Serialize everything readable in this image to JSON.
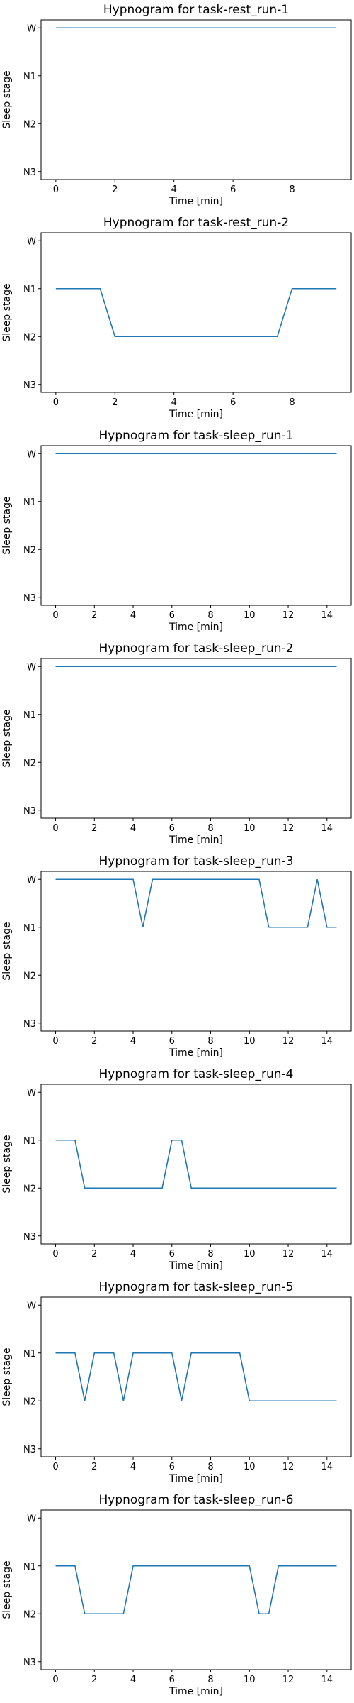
{
  "theme": {
    "line_color": "#1f77b4",
    "axis_color": "#000000",
    "background": "#ffffff"
  },
  "chart_data": [
    {
      "type": "line",
      "title": "Hypnogram for task-rest_run-1",
      "xlabel": "Time [min]",
      "ylabel": "Sleep stage",
      "y_categories": [
        "W",
        "N1",
        "N2",
        "N3"
      ],
      "xlim": [
        -0.5,
        10.0
      ],
      "xticks": [
        0,
        2,
        4,
        6,
        8
      ],
      "grid": false,
      "x": [
        0,
        9.5
      ],
      "y": [
        "W",
        "W"
      ]
    },
    {
      "type": "line",
      "title": "Hypnogram for task-rest_run-2",
      "xlabel": "Time [min]",
      "ylabel": "Sleep stage",
      "y_categories": [
        "W",
        "N1",
        "N2",
        "N3"
      ],
      "xlim": [
        -0.5,
        10.0
      ],
      "xticks": [
        0,
        2,
        4,
        6,
        8
      ],
      "grid": false,
      "x": [
        0,
        1.5,
        2.0,
        7.5,
        8.0,
        9.5
      ],
      "y": [
        "N1",
        "N1",
        "N2",
        "N2",
        "N1",
        "N1"
      ]
    },
    {
      "type": "line",
      "title": "Hypnogram for task-sleep_run-1",
      "xlabel": "Time [min]",
      "ylabel": "Sleep stage",
      "y_categories": [
        "W",
        "N1",
        "N2",
        "N3"
      ],
      "xlim": [
        -0.75,
        15.25
      ],
      "xticks": [
        0,
        2,
        4,
        6,
        8,
        10,
        12,
        14
      ],
      "grid": false,
      "x": [
        0,
        14.5
      ],
      "y": [
        "W",
        "W"
      ]
    },
    {
      "type": "line",
      "title": "Hypnogram for task-sleep_run-2",
      "xlabel": "Time [min]",
      "ylabel": "Sleep stage",
      "y_categories": [
        "W",
        "N1",
        "N2",
        "N3"
      ],
      "xlim": [
        -0.75,
        15.25
      ],
      "xticks": [
        0,
        2,
        4,
        6,
        8,
        10,
        12,
        14
      ],
      "grid": false,
      "x": [
        0,
        14.5
      ],
      "y": [
        "W",
        "W"
      ]
    },
    {
      "type": "line",
      "title": "Hypnogram for task-sleep_run-3",
      "xlabel": "Time [min]",
      "ylabel": "Sleep stage",
      "y_categories": [
        "W",
        "N1",
        "N2",
        "N3"
      ],
      "xlim": [
        -0.75,
        15.25
      ],
      "xticks": [
        0,
        2,
        4,
        6,
        8,
        10,
        12,
        14
      ],
      "grid": false,
      "x": [
        0,
        4.0,
        4.5,
        5.0,
        10.5,
        11.0,
        13.0,
        13.5,
        14.0,
        14.5
      ],
      "y": [
        "W",
        "W",
        "N1",
        "W",
        "W",
        "N1",
        "N1",
        "W",
        "N1",
        "N1"
      ]
    },
    {
      "type": "line",
      "title": "Hypnogram for task-sleep_run-4",
      "xlabel": "Time [min]",
      "ylabel": "Sleep stage",
      "y_categories": [
        "W",
        "N1",
        "N2",
        "N3"
      ],
      "xlim": [
        -0.75,
        15.25
      ],
      "xticks": [
        0,
        2,
        4,
        6,
        8,
        10,
        12,
        14
      ],
      "grid": false,
      "x": [
        0,
        1.0,
        1.5,
        5.5,
        6.0,
        6.5,
        7.0,
        14.5
      ],
      "y": [
        "N1",
        "N1",
        "N2",
        "N2",
        "N1",
        "N1",
        "N2",
        "N2"
      ]
    },
    {
      "type": "line",
      "title": "Hypnogram for task-sleep_run-5",
      "xlabel": "Time [min]",
      "ylabel": "Sleep stage",
      "y_categories": [
        "W",
        "N1",
        "N2",
        "N3"
      ],
      "xlim": [
        -0.75,
        15.25
      ],
      "xticks": [
        0,
        2,
        4,
        6,
        8,
        10,
        12,
        14
      ],
      "grid": false,
      "x": [
        0,
        1.0,
        1.5,
        2.0,
        3.0,
        3.5,
        4.0,
        6.0,
        6.5,
        7.0,
        9.5,
        10.0,
        14.5
      ],
      "y": [
        "N1",
        "N1",
        "N2",
        "N1",
        "N1",
        "N2",
        "N1",
        "N1",
        "N2",
        "N1",
        "N1",
        "N2",
        "N2"
      ]
    },
    {
      "type": "line",
      "title": "Hypnogram for task-sleep_run-6",
      "xlabel": "Time [min]",
      "ylabel": "Sleep stage",
      "y_categories": [
        "W",
        "N1",
        "N2",
        "N3"
      ],
      "xlim": [
        -0.75,
        15.25
      ],
      "xticks": [
        0,
        2,
        4,
        6,
        8,
        10,
        12,
        14
      ],
      "grid": false,
      "x": [
        0,
        1.0,
        1.5,
        3.5,
        4.0,
        10.0,
        10.5,
        11.0,
        11.5,
        14.5
      ],
      "y": [
        "N1",
        "N1",
        "N2",
        "N2",
        "N1",
        "N1",
        "N2",
        "N2",
        "N1",
        "N1"
      ]
    }
  ]
}
